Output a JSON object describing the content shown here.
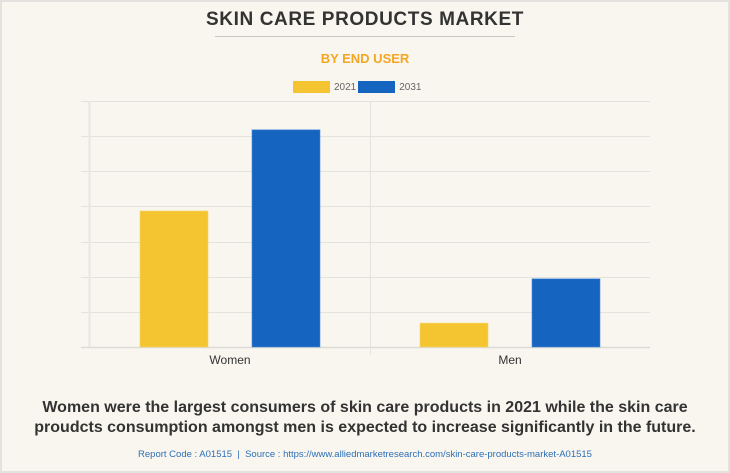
{
  "header": {
    "title": "SKIN CARE PRODUCTS MARKET",
    "subtitle": "BY END USER"
  },
  "colors": {
    "series_2021": "#f4c531",
    "series_2031": "#1565c0",
    "subtitle": "#f5a623",
    "source_link": "#2e6fb7"
  },
  "chart_data": {
    "type": "bar",
    "title": "SKIN CARE PRODUCTS MARKET",
    "subtitle": "BY END USER",
    "categories": [
      "Women",
      "Men"
    ],
    "series": [
      {
        "name": "2021",
        "values": [
          3.87,
          0.68
        ]
      },
      {
        "name": "2031",
        "values": [
          6.18,
          1.94
        ]
      }
    ],
    "xlabel": "",
    "ylabel": "",
    "ylim": [
      0,
      7
    ],
    "y_ticks_count": 7,
    "y_tick_labels_visible": false,
    "grid": true,
    "legend": "top-center",
    "units_note": "values in gridline units (no axis labels shown)"
  },
  "footer": {
    "caption_line1": "Women were the largest consumers of skin care products in 2021 while the skin care",
    "caption_line2": "proudcts consumption amongst men is expected to increase significantly in the future.",
    "source": "Report Code : A01515  |  Source : https://www.alliedmarketresearch.com/skin-care-products-market-A01515"
  }
}
